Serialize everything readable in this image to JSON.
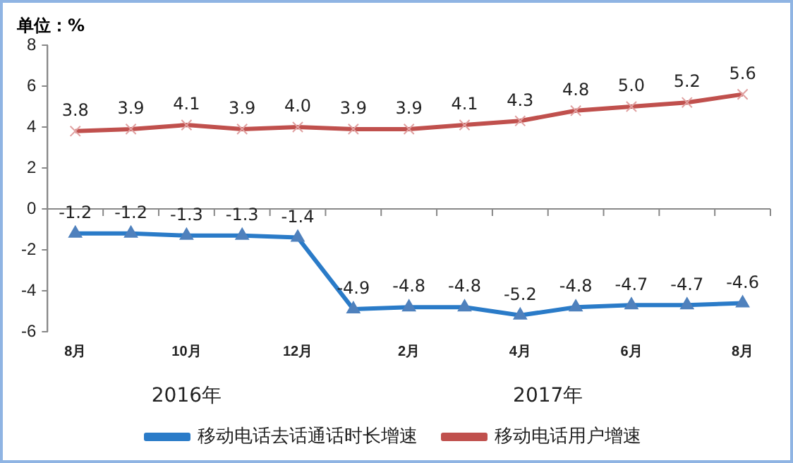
{
  "chart_data": {
    "type": "line",
    "ylabel": "单位：%",
    "categories": [
      "8月",
      null,
      "10月",
      null,
      "12月",
      null,
      "2月",
      null,
      "4月",
      null,
      "6月",
      null,
      "8月"
    ],
    "series": [
      {
        "name": "移动电话去话通话时长增速",
        "color": "#2a7bc8",
        "marker": "triangle",
        "values": [
          -1.2,
          -1.2,
          -1.3,
          -1.3,
          -1.4,
          -4.9,
          -4.8,
          -4.8,
          -5.2,
          -4.8,
          -4.7,
          -4.7,
          -4.6
        ],
        "value_labels": [
          "-1.2",
          "-1.2",
          "-1.3",
          "-1.3",
          "-1.4",
          "-4.9",
          "-4.8",
          "-4.8",
          "-5.2",
          "-4.8",
          "-4.7",
          "-4.7",
          "-4.6"
        ]
      },
      {
        "name": "移动电话用户增速",
        "color": "#c0504d",
        "marker": "cross",
        "values": [
          3.8,
          3.9,
          4.1,
          3.9,
          4.0,
          3.9,
          3.9,
          4.1,
          4.3,
          4.8,
          5.0,
          5.2,
          5.6
        ],
        "value_labels": [
          "3.8",
          "3.9",
          "4.1",
          "3.9",
          "4.0",
          "3.9",
          "3.9",
          "4.1",
          "4.3",
          "4.8",
          "5.0",
          "5.2",
          "5.6"
        ]
      }
    ],
    "ylim": [
      -6,
      8
    ],
    "yticks": [
      -6,
      -4,
      -2,
      0,
      2,
      4,
      6,
      8
    ],
    "legend": "bottom",
    "annotations": [
      "2016年",
      "2017年"
    ]
  }
}
